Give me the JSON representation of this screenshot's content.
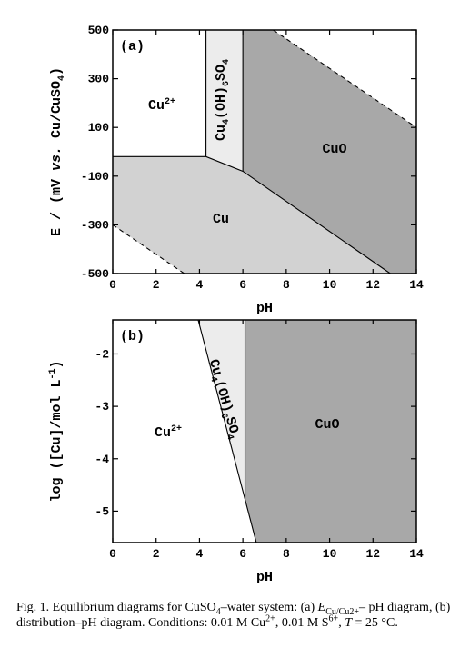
{
  "chart_data": [
    {
      "type": "region",
      "panel": "(a)",
      "xlabel": "pH",
      "ylabel": [
        {
          "text": "E / (mV "
        },
        {
          "text": "vs.",
          "italic": true
        },
        {
          "text": " Cu/CuSO"
        },
        {
          "text": "4",
          "sub": true
        },
        {
          "text": ")"
        }
      ],
      "xlim": [
        0,
        14
      ],
      "xticks": [
        0,
        2,
        4,
        6,
        8,
        10,
        12,
        14
      ],
      "ylim": [
        -500,
        500
      ],
      "yticks": [
        500,
        300,
        100,
        -100,
        -300,
        -500
      ],
      "regions": [
        {
          "label": [
            {
              "text": "Cu"
            },
            {
              "text": "2+",
              "sup": true
            }
          ],
          "color": "#ffffff",
          "x": [
            0,
            4.3,
            4.3,
            0
          ],
          "y": [
            500,
            500,
            -20,
            -20
          ]
        },
        {
          "label": [
            {
              "text": "Cu"
            },
            {
              "text": "4",
              "sub": true
            },
            {
              "text": "(OH)"
            },
            {
              "text": "6",
              "sub": true
            },
            {
              "text": "SO"
            },
            {
              "text": "4",
              "sub": true
            }
          ],
          "color": "#ececec",
          "x": [
            4.3,
            6,
            6,
            4.3
          ],
          "y": [
            500,
            500,
            -80,
            -20
          ]
        },
        {
          "label": [
            {
              "text": "CuO"
            }
          ],
          "color": "#a8a8a8",
          "x": [
            6,
            7.4,
            14,
            14,
            12.8,
            6
          ],
          "y": [
            500,
            500,
            100,
            -500,
            -500,
            -80
          ]
        },
        {
          "label": [
            {
              "text": "Cu"
            }
          ],
          "color": "#d2d2d2",
          "x": [
            0,
            4.3,
            6,
            12.8,
            3.3,
            0
          ],
          "y": [
            -20,
            -20,
            -80,
            -500,
            -500,
            -300
          ]
        }
      ],
      "boundaries": [
        {
          "x": [
            0,
            4.3,
            6,
            12.8
          ],
          "y": [
            -20,
            -20,
            -80,
            -500
          ],
          "dashed": false
        },
        {
          "x": [
            4.3,
            4.3
          ],
          "y": [
            500,
            -20
          ],
          "dashed": false
        },
        {
          "x": [
            6,
            6
          ],
          "y": [
            500,
            -80
          ],
          "dashed": false
        },
        {
          "x": [
            7.4,
            14
          ],
          "y": [
            500,
            100
          ],
          "dashed": true
        },
        {
          "x": [
            0,
            3.3
          ],
          "y": [
            -300,
            -500
          ],
          "dashed": true
        }
      ]
    },
    {
      "type": "region",
      "panel": "(b)",
      "xlabel": "pH",
      "ylabel": [
        {
          "text": "log ([Cu]/mol L"
        },
        {
          "text": "-1",
          "sup": true
        },
        {
          "text": ")"
        }
      ],
      "xlim": [
        0,
        14
      ],
      "xticks": [
        0,
        2,
        4,
        6,
        8,
        10,
        12,
        14
      ],
      "ylim": [
        -5.6,
        -1.35
      ],
      "yticks": [
        -2,
        -3,
        -4,
        -5
      ],
      "regions": [
        {
          "label": [
            {
              "text": "Cu"
            },
            {
              "text": "2+",
              "sup": true
            }
          ],
          "color": "#ffffff",
          "x": [
            0,
            3.94,
            6.62,
            0
          ],
          "y": [
            -1.35,
            -1.35,
            -5.6,
            -5.6
          ]
        },
        {
          "label": [
            {
              "text": "Cu"
            },
            {
              "text": "4",
              "sub": true
            },
            {
              "text": "(OH)"
            },
            {
              "text": "6",
              "sub": true
            },
            {
              "text": "SO"
            },
            {
              "text": "4",
              "sub": true
            }
          ],
          "color": "#ececec",
          "x": [
            3.94,
            6.1,
            6.1
          ],
          "y": [
            -1.35,
            -1.35,
            -4.77
          ]
        },
        {
          "label": [
            {
              "text": "CuO"
            }
          ],
          "color": "#a8a8a8",
          "x": [
            6.1,
            14,
            14,
            6.62,
            6.1
          ],
          "y": [
            -1.35,
            -1.35,
            -5.6,
            -5.6,
            -4.77
          ]
        }
      ],
      "boundaries": [
        {
          "x": [
            3.94,
            6.62
          ],
          "y": [
            -1.35,
            -5.6
          ],
          "dashed": false
        },
        {
          "x": [
            6.1,
            6.1
          ],
          "y": [
            -1.35,
            -4.77
          ],
          "dashed": false
        }
      ]
    }
  ],
  "caption": [
    {
      "text": "Fig. 1.  Equilibrium diagrams for CuSO"
    },
    {
      "text": "4",
      "sub": true
    },
    {
      "text": "–water system: (a) "
    },
    {
      "text": "E",
      "italic": true
    },
    {
      "text": "Cu/Cu2+",
      "sub": true
    },
    {
      "text": "– pH diagram, (b) distribution–pH diagram. Conditions: 0.01 M Cu"
    },
    {
      "text": "2+",
      "sup": true
    },
    {
      "text": ", 0.01 M S"
    },
    {
      "text": "6+",
      "sup": true
    },
    {
      "text": ", "
    },
    {
      "text": "T",
      "italic": true
    },
    {
      "text": " = 25  °C."
    }
  ]
}
